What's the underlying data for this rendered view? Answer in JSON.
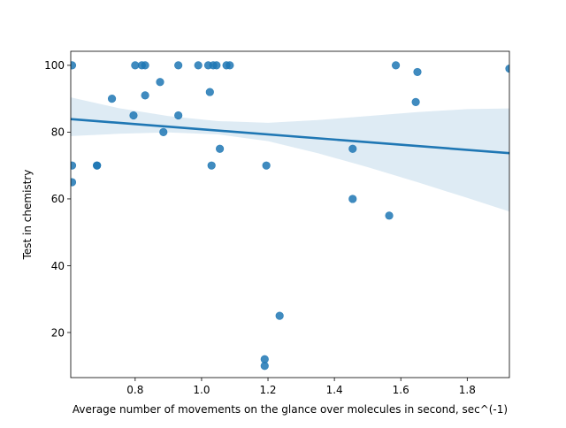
{
  "chart_data": {
    "type": "scatter",
    "title": "",
    "xlabel": "Average number of movements on the glance over molecules in second, sec^(-1)",
    "ylabel": "Test in chemistry",
    "xlim": [
      0.606,
      1.927
    ],
    "ylim": [
      6.5,
      104.2
    ],
    "x_ticks": [
      0.8,
      1.0,
      1.2,
      1.4,
      1.6,
      1.8
    ],
    "x_tick_labels": [
      "0.8",
      "1.0",
      "1.2",
      "1.4",
      "1.6",
      "1.8"
    ],
    "y_ticks": [
      20,
      40,
      60,
      80,
      100
    ],
    "y_tick_labels": [
      "20",
      "40",
      "60",
      "80",
      "100"
    ],
    "grid": false,
    "legend": "none",
    "colors": {
      "points": "#1f77b4",
      "fit_line": "#1f77b4",
      "confidence_band": "#1f77b4"
    },
    "series": [
      {
        "x": [
          0.61,
          0.61,
          0.61,
          0.685,
          0.685,
          0.73,
          0.795,
          0.8,
          0.82,
          0.83,
          0.83,
          0.875,
          0.885,
          0.93,
          0.93,
          0.99,
          1.02,
          1.025,
          1.03,
          1.035,
          1.045,
          1.055,
          1.075,
          1.085,
          1.19,
          1.19,
          1.195,
          1.235,
          1.455,
          1.455,
          1.565,
          1.585,
          1.645,
          1.65,
          1.927
        ],
        "y": [
          100,
          70,
          65,
          70,
          70,
          90,
          85,
          100,
          100,
          100,
          91,
          95,
          80,
          100,
          85,
          100,
          100,
          92,
          70,
          100,
          100,
          75,
          100,
          100,
          12,
          10,
          70,
          25,
          75,
          60,
          55,
          100,
          89,
          98,
          99
        ]
      }
    ],
    "regression": {
      "x": [
        0.606,
        1.927
      ],
      "y": [
        83.9,
        73.7
      ]
    },
    "confidence_band": {
      "x": [
        0.606,
        0.75,
        0.9,
        1.05,
        1.2,
        1.35,
        1.5,
        1.65,
        1.8,
        1.927
      ],
      "upper": [
        90.4,
        87.2,
        84.8,
        83.3,
        82.8,
        83.6,
        84.8,
        86.0,
        86.9,
        87.1
      ],
      "lower": [
        78.8,
        79.5,
        79.9,
        79.3,
        77.3,
        73.7,
        69.5,
        65.0,
        60.3,
        56.2
      ]
    }
  }
}
